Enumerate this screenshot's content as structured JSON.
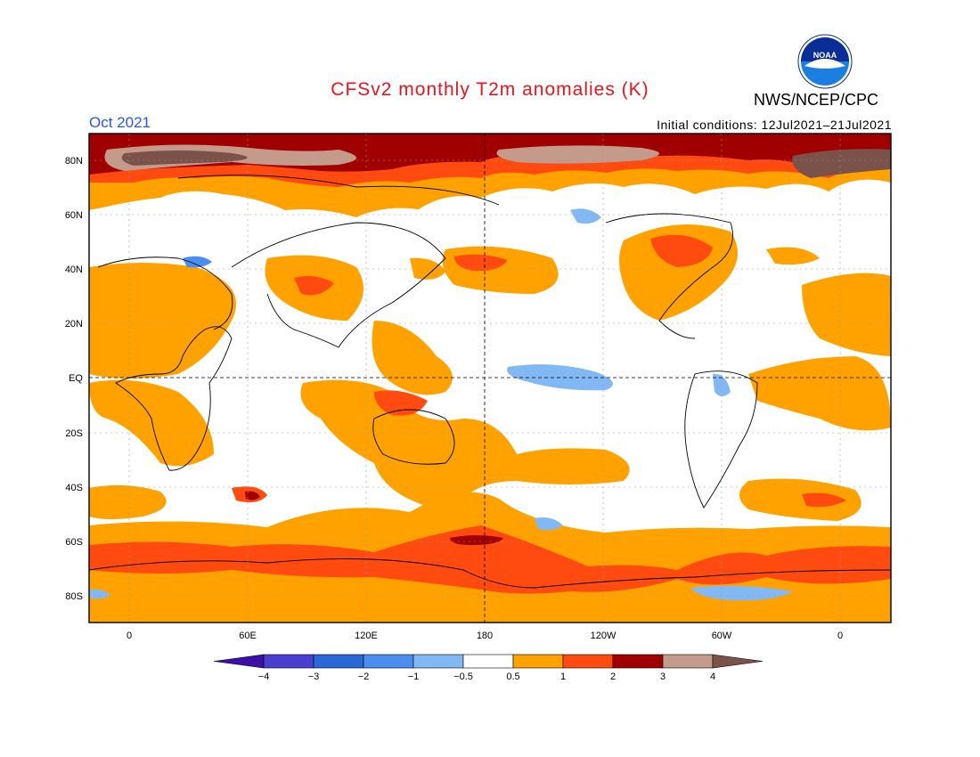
{
  "header": {
    "title": "CFSv2 monthly T2m anomalies (K)",
    "month": "Oct 2021",
    "initial_conditions": "Initial conditions: 12Jul2021–21Jul2021",
    "agency": "NWS/NCEP/CPC",
    "logo_text": "NOAA"
  },
  "map": {
    "lon_labels": [
      "0",
      "60E",
      "120E",
      "180",
      "120W",
      "60W",
      "0"
    ],
    "lat_labels": [
      "80N",
      "60N",
      "40N",
      "20N",
      "EQ",
      "20S",
      "40S",
      "60S",
      "80S"
    ]
  },
  "legend": {
    "labels": [
      "−4",
      "−3",
      "−2",
      "−1",
      "−0.5",
      "0.5",
      "1",
      "2",
      "3",
      "4"
    ],
    "colors": [
      "#3d10a8",
      "#4a3fd0",
      "#2a68d8",
      "#4a8ff0",
      "#82b8f4",
      "#ffffff",
      "#ffa200",
      "#ff4a10",
      "#a00000",
      "#c49a8a",
      "#7a524a"
    ]
  }
}
